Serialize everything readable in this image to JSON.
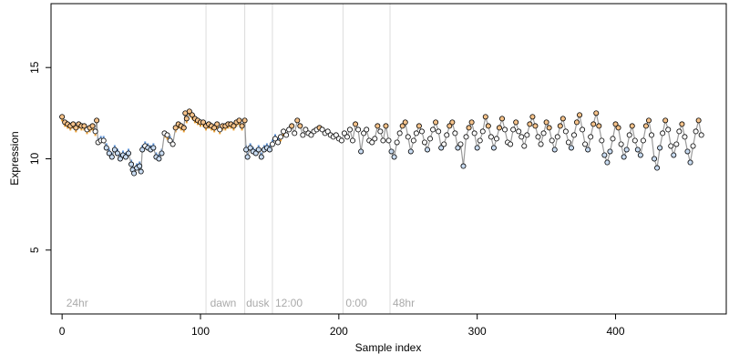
{
  "chart_data": {
    "type": "scatter",
    "title": "",
    "xlabel": "Sample index",
    "ylabel": "Expression",
    "xlim": [
      -8,
      480
    ],
    "ylim": [
      1.5,
      18.5
    ],
    "x_ticks": [
      0,
      100,
      200,
      300,
      400
    ],
    "y_ticks": [
      5,
      10,
      15
    ],
    "grid": false,
    "legend": "none",
    "baseline_value": 11.2,
    "colors": {
      "point_fill_high": "#f5c28a",
      "point_fill_low": "#c9dcf2",
      "point_fill_neutral": "#ffffff",
      "point_stroke": "#000000",
      "segment_high": "#f0a030",
      "segment_low": "#5f93d6",
      "trend_line": "#9a9a9a",
      "divider": "#dcdcdc",
      "annotation": "#aaaaaa"
    },
    "dividers": [
      104,
      132,
      152,
      203,
      237
    ],
    "annotations": [
      {
        "text": "24hr",
        "x": 3
      },
      {
        "text": "dawn",
        "x": 107
      },
      {
        "text": "dusk",
        "x": 133
      },
      {
        "text": "12:00",
        "x": 154
      },
      {
        "text": "0:00",
        "x": 205
      },
      {
        "text": "48hr",
        "x": 239
      }
    ],
    "series": [
      {
        "values": [
          [
            0,
            12.3
          ],
          [
            2,
            12.0
          ],
          [
            4,
            11.9
          ],
          [
            6,
            11.8
          ],
          [
            8,
            11.9
          ],
          [
            10,
            11.7
          ],
          [
            12,
            11.9
          ],
          [
            14,
            11.8
          ],
          [
            16,
            11.8
          ],
          [
            18,
            11.6
          ],
          [
            20,
            11.7
          ],
          [
            22,
            11.8
          ],
          [
            24,
            11.5
          ],
          [
            25,
            12.1
          ],
          [
            26,
            10.9
          ],
          [
            28,
            11.0
          ],
          [
            30,
            11.0
          ],
          [
            32,
            10.6
          ],
          [
            34,
            10.3
          ],
          [
            36,
            10.1
          ],
          [
            38,
            10.5
          ],
          [
            40,
            10.3
          ],
          [
            42,
            10.0
          ],
          [
            44,
            10.2
          ],
          [
            46,
            10.1
          ],
          [
            48,
            10.3
          ],
          [
            50,
            9.7
          ],
          [
            51,
            9.4
          ],
          [
            52,
            9.2
          ],
          [
            54,
            9.5
          ],
          [
            56,
            9.6
          ],
          [
            57,
            9.3
          ],
          [
            58,
            10.5
          ],
          [
            60,
            10.7
          ],
          [
            62,
            10.6
          ],
          [
            64,
            10.5
          ],
          [
            66,
            10.6
          ],
          [
            68,
            10.1
          ],
          [
            70,
            10.0
          ],
          [
            72,
            10.3
          ],
          [
            74,
            11.4
          ],
          [
            76,
            11.3
          ],
          [
            78,
            11.0
          ],
          [
            80,
            10.8
          ],
          [
            82,
            11.7
          ],
          [
            84,
            11.9
          ],
          [
            86,
            11.8
          ],
          [
            88,
            11.7
          ],
          [
            89,
            12.5
          ],
          [
            90,
            12.2
          ],
          [
            92,
            12.6
          ],
          [
            94,
            12.4
          ],
          [
            96,
            12.2
          ],
          [
            98,
            12.1
          ],
          [
            100,
            12.0
          ],
          [
            102,
            12.0
          ],
          [
            104,
            11.8
          ],
          [
            106,
            11.9
          ],
          [
            108,
            11.8
          ],
          [
            110,
            11.7
          ],
          [
            112,
            11.9
          ],
          [
            114,
            11.6
          ],
          [
            116,
            11.8
          ],
          [
            118,
            11.8
          ],
          [
            120,
            11.9
          ],
          [
            122,
            11.9
          ],
          [
            124,
            11.8
          ],
          [
            126,
            12.0
          ],
          [
            128,
            12.1
          ],
          [
            130,
            11.8
          ],
          [
            132,
            12.1
          ],
          [
            133,
            10.5
          ],
          [
            134,
            10.1
          ],
          [
            136,
            10.6
          ],
          [
            138,
            10.4
          ],
          [
            140,
            10.3
          ],
          [
            142,
            10.5
          ],
          [
            144,
            10.1
          ],
          [
            146,
            10.5
          ],
          [
            148,
            10.6
          ],
          [
            150,
            10.5
          ],
          [
            152,
            10.8
          ],
          [
            154,
            11.1
          ],
          [
            156,
            10.9
          ],
          [
            158,
            11.2
          ],
          [
            160,
            11.5
          ],
          [
            162,
            11.3
          ],
          [
            164,
            11.6
          ],
          [
            166,
            11.8
          ],
          [
            168,
            11.4
          ],
          [
            170,
            12.1
          ],
          [
            172,
            11.8
          ],
          [
            174,
            11.3
          ],
          [
            176,
            11.6
          ],
          [
            178,
            11.4
          ],
          [
            180,
            11.3
          ],
          [
            182,
            11.5
          ],
          [
            184,
            11.6
          ],
          [
            186,
            11.7
          ],
          [
            188,
            11.6
          ],
          [
            190,
            11.4
          ],
          [
            192,
            11.5
          ],
          [
            194,
            11.3
          ],
          [
            196,
            11.2
          ],
          [
            198,
            11.3
          ],
          [
            200,
            11.1
          ],
          [
            202,
            11.0
          ],
          [
            204,
            11.4
          ],
          [
            206,
            11.2
          ],
          [
            208,
            11.6
          ],
          [
            210,
            11.0
          ],
          [
            212,
            11.9
          ],
          [
            214,
            11.6
          ],
          [
            216,
            10.4
          ],
          [
            218,
            11.4
          ],
          [
            220,
            11.6
          ],
          [
            222,
            11.0
          ],
          [
            224,
            10.9
          ],
          [
            226,
            11.1
          ],
          [
            228,
            11.8
          ],
          [
            230,
            11.5
          ],
          [
            232,
            11.0
          ],
          [
            234,
            11.8
          ],
          [
            236,
            11.0
          ],
          [
            238,
            10.4
          ],
          [
            240,
            10.1
          ],
          [
            242,
            10.9
          ],
          [
            244,
            11.4
          ],
          [
            246,
            11.8
          ],
          [
            248,
            12.0
          ],
          [
            250,
            11.2
          ],
          [
            252,
            10.4
          ],
          [
            254,
            11.0
          ],
          [
            256,
            11.4
          ],
          [
            258,
            11.8
          ],
          [
            260,
            11.5
          ],
          [
            262,
            10.9
          ],
          [
            264,
            10.5
          ],
          [
            266,
            11.1
          ],
          [
            268,
            11.6
          ],
          [
            270,
            12.0
          ],
          [
            272,
            11.5
          ],
          [
            274,
            10.6
          ],
          [
            276,
            10.8
          ],
          [
            278,
            11.3
          ],
          [
            280,
            11.8
          ],
          [
            282,
            12.0
          ],
          [
            284,
            11.4
          ],
          [
            286,
            10.6
          ],
          [
            288,
            10.8
          ],
          [
            290,
            9.6
          ],
          [
            292,
            11.2
          ],
          [
            294,
            11.7
          ],
          [
            296,
            12.0
          ],
          [
            298,
            11.4
          ],
          [
            300,
            10.6
          ],
          [
            302,
            11.0
          ],
          [
            304,
            11.5
          ],
          [
            306,
            12.3
          ],
          [
            308,
            11.8
          ],
          [
            310,
            11.2
          ],
          [
            312,
            10.6
          ],
          [
            314,
            11.1
          ],
          [
            316,
            11.7
          ],
          [
            318,
            12.2
          ],
          [
            320,
            11.6
          ],
          [
            322,
            10.9
          ],
          [
            324,
            10.8
          ],
          [
            326,
            11.6
          ],
          [
            328,
            12.0
          ],
          [
            330,
            11.5
          ],
          [
            332,
            11.2
          ],
          [
            334,
            10.7
          ],
          [
            336,
            11.3
          ],
          [
            338,
            11.9
          ],
          [
            340,
            12.3
          ],
          [
            342,
            11.8
          ],
          [
            344,
            11.2
          ],
          [
            346,
            10.8
          ],
          [
            348,
            11.4
          ],
          [
            350,
            12.0
          ],
          [
            352,
            11.7
          ],
          [
            354,
            11.0
          ],
          [
            356,
            10.5
          ],
          [
            358,
            11.2
          ],
          [
            360,
            11.8
          ],
          [
            362,
            12.2
          ],
          [
            364,
            11.5
          ],
          [
            366,
            10.9
          ],
          [
            368,
            10.6
          ],
          [
            370,
            11.3
          ],
          [
            372,
            12.0
          ],
          [
            374,
            12.4
          ],
          [
            376,
            11.6
          ],
          [
            378,
            10.8
          ],
          [
            380,
            10.5
          ],
          [
            382,
            11.2
          ],
          [
            384,
            11.9
          ],
          [
            386,
            12.5
          ],
          [
            388,
            11.8
          ],
          [
            390,
            11.0
          ],
          [
            392,
            10.2
          ],
          [
            394,
            9.8
          ],
          [
            396,
            10.4
          ],
          [
            398,
            11.1
          ],
          [
            400,
            11.9
          ],
          [
            402,
            11.7
          ],
          [
            404,
            10.8
          ],
          [
            406,
            10.1
          ],
          [
            408,
            10.5
          ],
          [
            410,
            11.3
          ],
          [
            412,
            11.8
          ],
          [
            414,
            11.0
          ],
          [
            416,
            10.5
          ],
          [
            418,
            10.2
          ],
          [
            420,
            11.0
          ],
          [
            422,
            11.8
          ],
          [
            424,
            12.1
          ],
          [
            426,
            11.3
          ],
          [
            428,
            10.0
          ],
          [
            430,
            9.5
          ],
          [
            432,
            10.6
          ],
          [
            434,
            11.4
          ],
          [
            436,
            12.1
          ],
          [
            438,
            11.6
          ],
          [
            440,
            10.7
          ],
          [
            442,
            10.2
          ],
          [
            444,
            10.8
          ],
          [
            446,
            11.5
          ],
          [
            448,
            11.9
          ],
          [
            450,
            11.2
          ],
          [
            452,
            10.4
          ],
          [
            454,
            9.8
          ],
          [
            456,
            10.7
          ],
          [
            458,
            11.5
          ],
          [
            460,
            12.1
          ],
          [
            462,
            11.3
          ]
        ]
      }
    ]
  }
}
